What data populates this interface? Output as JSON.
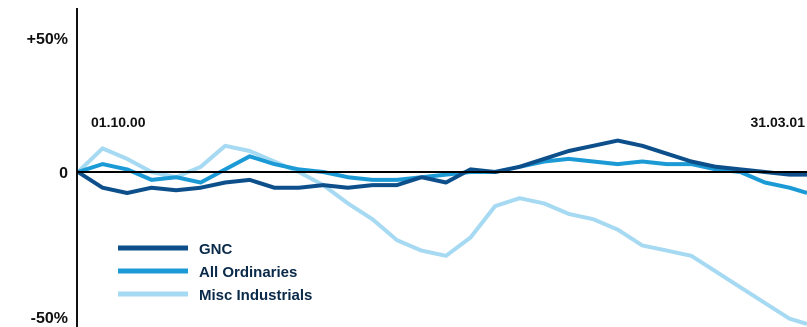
{
  "chart_data": {
    "type": "line",
    "title": "",
    "xlabel": "",
    "ylabel": "",
    "ylim": [
      -50,
      50
    ],
    "y_tick_labels": [
      "+50%",
      "0",
      "-50%"
    ],
    "date_annotations": [
      "01.10.00",
      "31.03.01"
    ],
    "grid": false,
    "legend_position": "bottom-left",
    "x_range": [
      "2000-09-04",
      "2001-03-31"
    ],
    "series": [
      {
        "name": "GNC",
        "color": "#0d4f8a",
        "points": [
          [
            "2000-09-04",
            0
          ],
          [
            "2000-09-11",
            -6
          ],
          [
            "2000-09-18",
            -8
          ],
          [
            "2000-09-25",
            -6
          ],
          [
            "2000-10-02",
            -7
          ],
          [
            "2000-10-09",
            -6
          ],
          [
            "2000-10-16",
            -4
          ],
          [
            "2000-10-23",
            -3
          ],
          [
            "2000-10-30",
            -6
          ],
          [
            "2000-11-06",
            -6
          ],
          [
            "2000-11-13",
            -5
          ],
          [
            "2000-11-20",
            -6
          ],
          [
            "2000-11-27",
            -5
          ],
          [
            "2000-12-04",
            -5
          ],
          [
            "2000-12-11",
            -2
          ],
          [
            "2000-12-18",
            -4
          ],
          [
            "2000-12-25",
            1
          ],
          [
            "2001-01-01",
            0
          ],
          [
            "2001-01-08",
            2
          ],
          [
            "2001-01-15",
            5
          ],
          [
            "2001-01-22",
            8
          ],
          [
            "2001-01-29",
            10
          ],
          [
            "2001-02-05",
            12
          ],
          [
            "2001-02-12",
            10
          ],
          [
            "2001-02-19",
            7
          ],
          [
            "2001-02-26",
            4
          ],
          [
            "2001-03-05",
            2
          ],
          [
            "2001-03-12",
            1
          ],
          [
            "2001-03-19",
            0
          ],
          [
            "2001-03-26",
            -1
          ],
          [
            "2001-03-31",
            -1
          ]
        ]
      },
      {
        "name": "All Ordinaries",
        "color": "#1c9ad6",
        "points": [
          [
            "2000-09-04",
            0
          ],
          [
            "2000-09-11",
            3
          ],
          [
            "2000-09-18",
            1
          ],
          [
            "2000-09-25",
            -3
          ],
          [
            "2000-10-02",
            -2
          ],
          [
            "2000-10-09",
            -4
          ],
          [
            "2000-10-16",
            1
          ],
          [
            "2000-10-23",
            6
          ],
          [
            "2000-10-30",
            3
          ],
          [
            "2000-11-06",
            1
          ],
          [
            "2000-11-13",
            0
          ],
          [
            "2000-11-20",
            -2
          ],
          [
            "2000-11-27",
            -3
          ],
          [
            "2000-12-04",
            -3
          ],
          [
            "2000-12-11",
            -2
          ],
          [
            "2000-12-18",
            -1
          ],
          [
            "2000-12-25",
            0
          ],
          [
            "2001-01-01",
            0
          ],
          [
            "2001-01-08",
            2
          ],
          [
            "2001-01-15",
            4
          ],
          [
            "2001-01-22",
            5
          ],
          [
            "2001-01-29",
            4
          ],
          [
            "2001-02-05",
            3
          ],
          [
            "2001-02-12",
            4
          ],
          [
            "2001-02-19",
            3
          ],
          [
            "2001-02-26",
            3
          ],
          [
            "2001-03-05",
            1
          ],
          [
            "2001-03-12",
            0
          ],
          [
            "2001-03-19",
            -4
          ],
          [
            "2001-03-26",
            -6
          ],
          [
            "2001-03-31",
            -8
          ]
        ]
      },
      {
        "name": "Misc Industrials",
        "color": "#a6d9f2",
        "points": [
          [
            "2000-09-04",
            0
          ],
          [
            "2000-09-11",
            9
          ],
          [
            "2000-09-18",
            5
          ],
          [
            "2000-09-25",
            0
          ],
          [
            "2000-10-02",
            -2
          ],
          [
            "2000-10-09",
            2
          ],
          [
            "2000-10-16",
            10
          ],
          [
            "2000-10-23",
            8
          ],
          [
            "2000-10-30",
            4
          ],
          [
            "2000-11-06",
            0
          ],
          [
            "2000-11-13",
            -5
          ],
          [
            "2000-11-20",
            -12
          ],
          [
            "2000-11-27",
            -18
          ],
          [
            "2000-12-04",
            -26
          ],
          [
            "2000-12-11",
            -30
          ],
          [
            "2000-12-18",
            -32
          ],
          [
            "2000-12-25",
            -25
          ],
          [
            "2001-01-01",
            -13
          ],
          [
            "2001-01-08",
            -10
          ],
          [
            "2001-01-15",
            -12
          ],
          [
            "2001-01-22",
            -16
          ],
          [
            "2001-01-29",
            -18
          ],
          [
            "2001-02-05",
            -22
          ],
          [
            "2001-02-12",
            -28
          ],
          [
            "2001-02-19",
            -30
          ],
          [
            "2001-02-26",
            -32
          ],
          [
            "2001-03-05",
            -38
          ],
          [
            "2001-03-12",
            -44
          ],
          [
            "2001-03-19",
            -50
          ],
          [
            "2001-03-26",
            -56
          ],
          [
            "2001-03-31",
            -58
          ]
        ]
      }
    ]
  }
}
